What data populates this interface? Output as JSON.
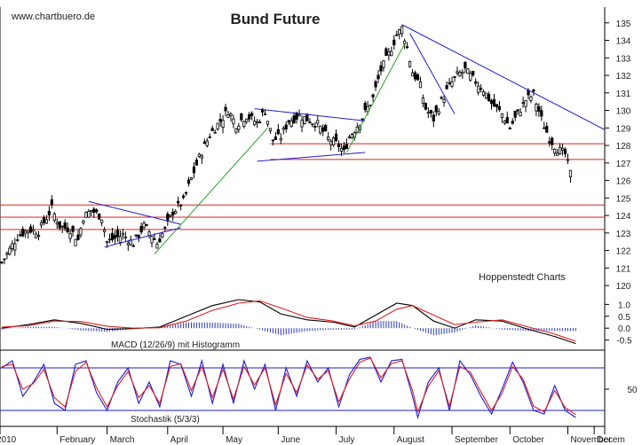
{
  "header": {
    "watermark": "www.chartbuero.de",
    "title": "Bund Future",
    "credit": "Hoppenstedt Charts"
  },
  "colors": {
    "background": "#ffffff",
    "candle": "#000000",
    "support_lines": "#e0201f",
    "trend_lines": "#1c1ccf",
    "green_trend": "#2aa12a",
    "macd_line": "#000000",
    "signal_line": "#e0201f",
    "histogram": "#2b36b8",
    "stoch_k": "#1c1ccf",
    "stoch_d": "#e0201f"
  },
  "chart_data": [
    {
      "type": "candlestick",
      "name": "price",
      "title": "Bund Future",
      "yticks": [
        120,
        121,
        122,
        123,
        124,
        125,
        126,
        127,
        128,
        129,
        130,
        131,
        132,
        133,
        134,
        135
      ],
      "ylim": [
        119.6,
        135.9
      ],
      "xlabels": [
        "2010",
        "February",
        "March",
        "April",
        "May",
        "June",
        "July",
        "August",
        "September",
        "October",
        "November",
        "Decem"
      ],
      "xlim": [
        0,
        229
      ],
      "month_starts": [
        0,
        21,
        40,
        63,
        84,
        105,
        127,
        149,
        171,
        193,
        215
      ],
      "closes_path": [
        [
          0,
          121.3
        ],
        [
          6,
          122.8
        ],
        [
          10,
          123.2
        ],
        [
          14,
          123.1
        ],
        [
          19,
          124.4
        ],
        [
          22,
          123.4
        ],
        [
          26,
          123.2
        ],
        [
          29,
          122.6
        ],
        [
          31,
          123.9
        ],
        [
          34,
          124.3
        ],
        [
          38,
          123.9
        ],
        [
          40,
          122.5
        ],
        [
          43,
          122.7
        ],
        [
          46,
          122.9
        ],
        [
          50,
          122.4
        ],
        [
          54,
          123.4
        ],
        [
          57,
          122.9
        ],
        [
          59,
          122.4
        ],
        [
          62,
          123.2
        ],
        [
          65,
          124.2
        ],
        [
          69,
          124.8
        ],
        [
          72,
          126.1
        ],
        [
          75,
          127.3
        ],
        [
          79,
          128.6
        ],
        [
          83,
          129.4
        ],
        [
          86,
          130.0
        ],
        [
          89,
          129.2
        ],
        [
          93,
          129.7
        ],
        [
          97,
          129.3
        ],
        [
          100,
          130.0
        ],
        [
          103,
          128.3
        ],
        [
          106,
          128.5
        ],
        [
          109,
          129.4
        ],
        [
          113,
          129.7
        ],
        [
          116,
          129.5
        ],
        [
          120,
          129.2
        ],
        [
          124,
          128.4
        ],
        [
          128,
          128.0
        ],
        [
          130,
          127.6
        ],
        [
          132,
          128.5
        ],
        [
          134,
          128.9
        ],
        [
          137,
          129.6
        ],
        [
          141,
          130.7
        ],
        [
          144,
          132.3
        ],
        [
          147,
          133.2
        ],
        [
          150,
          134.3
        ],
        [
          152,
          134.7
        ],
        [
          154,
          133.6
        ],
        [
          156,
          132.2
        ],
        [
          159,
          131.4
        ],
        [
          161,
          130.1
        ],
        [
          164,
          129.5
        ],
        [
          167,
          130.5
        ],
        [
          170,
          131.4
        ],
        [
          173,
          132.0
        ],
        [
          176,
          132.3
        ],
        [
          179,
          131.8
        ],
        [
          183,
          131.2
        ],
        [
          186,
          130.4
        ],
        [
          190,
          129.8
        ],
        [
          193,
          129.0
        ],
        [
          196,
          129.8
        ],
        [
          199,
          130.6
        ],
        [
          202,
          130.9
        ],
        [
          205,
          129.5
        ],
        [
          208,
          128.4
        ],
        [
          211,
          127.8
        ],
        [
          214,
          127.5
        ],
        [
          216,
          126.4
        ]
      ],
      "horizontal_levels": [
        124.6,
        123.9,
        123.2,
        128.1,
        127.2
      ],
      "trend_lines": [
        {
          "color": "blue",
          "from": [
            33,
            124.8
          ],
          "to": [
            68,
            123.5
          ]
        },
        {
          "color": "blue",
          "from": [
            39,
            122.2
          ],
          "to": [
            68,
            123.3
          ]
        },
        {
          "color": "green",
          "from": [
            58,
            121.8
          ],
          "to": [
            101,
            129.0
          ]
        },
        {
          "color": "blue",
          "from": [
            96,
            130.1
          ],
          "to": [
            138,
            129.4
          ]
        },
        {
          "color": "blue",
          "from": [
            97,
            127.1
          ],
          "to": [
            138,
            127.6
          ]
        },
        {
          "color": "green",
          "from": [
            131,
            127.6
          ],
          "to": [
            153,
            133.8
          ]
        },
        {
          "color": "blue",
          "from": [
            152,
            134.9
          ],
          "to": [
            229,
            128.9
          ]
        },
        {
          "color": "blue",
          "from": [
            155,
            134.4
          ],
          "to": [
            172,
            129.8
          ]
        }
      ],
      "credit": "Hoppenstedt Charts"
    },
    {
      "type": "line",
      "name": "macd",
      "label": "MACD (12/26/9) mit Histogramm",
      "yticks": [
        1.0,
        0.5,
        0.0,
        -0.5
      ],
      "ylim": [
        -0.85,
        1.35
      ],
      "series": [
        {
          "name": "MACD",
          "points": [
            [
              0,
              0.0
            ],
            [
              10,
              0.15
            ],
            [
              20,
              0.35
            ],
            [
              30,
              0.2
            ],
            [
              40,
              -0.05
            ],
            [
              50,
              -0.02
            ],
            [
              60,
              0.05
            ],
            [
              70,
              0.5
            ],
            [
              80,
              0.95
            ],
            [
              90,
              1.2
            ],
            [
              98,
              1.1
            ],
            [
              106,
              0.6
            ],
            [
              116,
              0.35
            ],
            [
              126,
              0.25
            ],
            [
              134,
              0.05
            ],
            [
              142,
              0.55
            ],
            [
              150,
              1.05
            ],
            [
              156,
              0.95
            ],
            [
              164,
              0.3
            ],
            [
              172,
              0.0
            ],
            [
              180,
              0.35
            ],
            [
              190,
              0.3
            ],
            [
              200,
              -0.05
            ],
            [
              210,
              -0.35
            ],
            [
              218,
              -0.65
            ]
          ]
        },
        {
          "name": "Signal",
          "points": [
            [
              0,
              0.05
            ],
            [
              10,
              0.1
            ],
            [
              20,
              0.3
            ],
            [
              30,
              0.28
            ],
            [
              40,
              0.08
            ],
            [
              50,
              0.0
            ],
            [
              60,
              0.02
            ],
            [
              70,
              0.3
            ],
            [
              80,
              0.75
            ],
            [
              90,
              1.05
            ],
            [
              98,
              1.15
            ],
            [
              106,
              0.85
            ],
            [
              116,
              0.45
            ],
            [
              126,
              0.3
            ],
            [
              134,
              0.1
            ],
            [
              142,
              0.3
            ],
            [
              150,
              0.8
            ],
            [
              156,
              0.95
            ],
            [
              164,
              0.55
            ],
            [
              172,
              0.15
            ],
            [
              180,
              0.25
            ],
            [
              190,
              0.35
            ],
            [
              200,
              0.05
            ],
            [
              210,
              -0.25
            ],
            [
              218,
              -0.55
            ]
          ]
        }
      ]
    },
    {
      "type": "line",
      "name": "stochastic",
      "label": "Stochastik (5/3/3)",
      "yticks": [
        50
      ],
      "ylim": [
        0,
        100
      ],
      "levels": [
        80,
        20
      ],
      "series": [
        {
          "name": "%K",
          "points": [
            [
              0,
              80
            ],
            [
              4,
              90
            ],
            [
              8,
              40
            ],
            [
              12,
              60
            ],
            [
              16,
              85
            ],
            [
              20,
              30
            ],
            [
              24,
              20
            ],
            [
              28,
              85
            ],
            [
              32,
              90
            ],
            [
              36,
              45
            ],
            [
              40,
              20
            ],
            [
              44,
              60
            ],
            [
              48,
              80
            ],
            [
              52,
              30
            ],
            [
              56,
              60
            ],
            [
              60,
              25
            ],
            [
              64,
              90
            ],
            [
              68,
              85
            ],
            [
              72,
              40
            ],
            [
              76,
              90
            ],
            [
              80,
              30
            ],
            [
              84,
              85
            ],
            [
              88,
              30
            ],
            [
              92,
              90
            ],
            [
              96,
              50
            ],
            [
              100,
              85
            ],
            [
              104,
              20
            ],
            [
              108,
              80
            ],
            [
              112,
              40
            ],
            [
              116,
              90
            ],
            [
              120,
              60
            ],
            [
              124,
              80
            ],
            [
              128,
              25
            ],
            [
              132,
              70
            ],
            [
              136,
              92
            ],
            [
              140,
              95
            ],
            [
              144,
              60
            ],
            [
              148,
              90
            ],
            [
              152,
              92
            ],
            [
              156,
              40
            ],
            [
              158,
              10
            ],
            [
              162,
              60
            ],
            [
              166,
              80
            ],
            [
              170,
              20
            ],
            [
              174,
              90
            ],
            [
              178,
              70
            ],
            [
              182,
              40
            ],
            [
              186,
              15
            ],
            [
              190,
              50
            ],
            [
              194,
              88
            ],
            [
              198,
              60
            ],
            [
              202,
              20
            ],
            [
              206,
              15
            ],
            [
              210,
              55
            ],
            [
              214,
              20
            ],
            [
              218,
              10
            ]
          ]
        },
        {
          "name": "%D",
          "points": [
            [
              0,
              82
            ],
            [
              4,
              85
            ],
            [
              8,
              50
            ],
            [
              12,
              58
            ],
            [
              16,
              78
            ],
            [
              20,
              38
            ],
            [
              24,
              25
            ],
            [
              28,
              75
            ],
            [
              32,
              88
            ],
            [
              36,
              52
            ],
            [
              40,
              25
            ],
            [
              44,
              55
            ],
            [
              48,
              75
            ],
            [
              52,
              38
            ],
            [
              56,
              55
            ],
            [
              60,
              30
            ],
            [
              64,
              82
            ],
            [
              68,
              86
            ],
            [
              72,
              48
            ],
            [
              76,
              82
            ],
            [
              80,
              38
            ],
            [
              84,
              78
            ],
            [
              88,
              36
            ],
            [
              92,
              82
            ],
            [
              96,
              56
            ],
            [
              100,
              80
            ],
            [
              104,
              28
            ],
            [
              108,
              72
            ],
            [
              112,
              45
            ],
            [
              116,
              84
            ],
            [
              120,
              64
            ],
            [
              124,
              76
            ],
            [
              128,
              32
            ],
            [
              132,
              64
            ],
            [
              136,
              88
            ],
            [
              140,
              94
            ],
            [
              144,
              66
            ],
            [
              148,
              86
            ],
            [
              152,
              90
            ],
            [
              156,
              48
            ],
            [
              158,
              18
            ],
            [
              162,
              54
            ],
            [
              166,
              76
            ],
            [
              170,
              26
            ],
            [
              174,
              82
            ],
            [
              178,
              74
            ],
            [
              182,
              46
            ],
            [
              186,
              20
            ],
            [
              190,
              44
            ],
            [
              194,
              82
            ],
            [
              198,
              64
            ],
            [
              202,
              26
            ],
            [
              206,
              18
            ],
            [
              210,
              48
            ],
            [
              214,
              24
            ],
            [
              218,
              14
            ]
          ]
        }
      ]
    }
  ]
}
